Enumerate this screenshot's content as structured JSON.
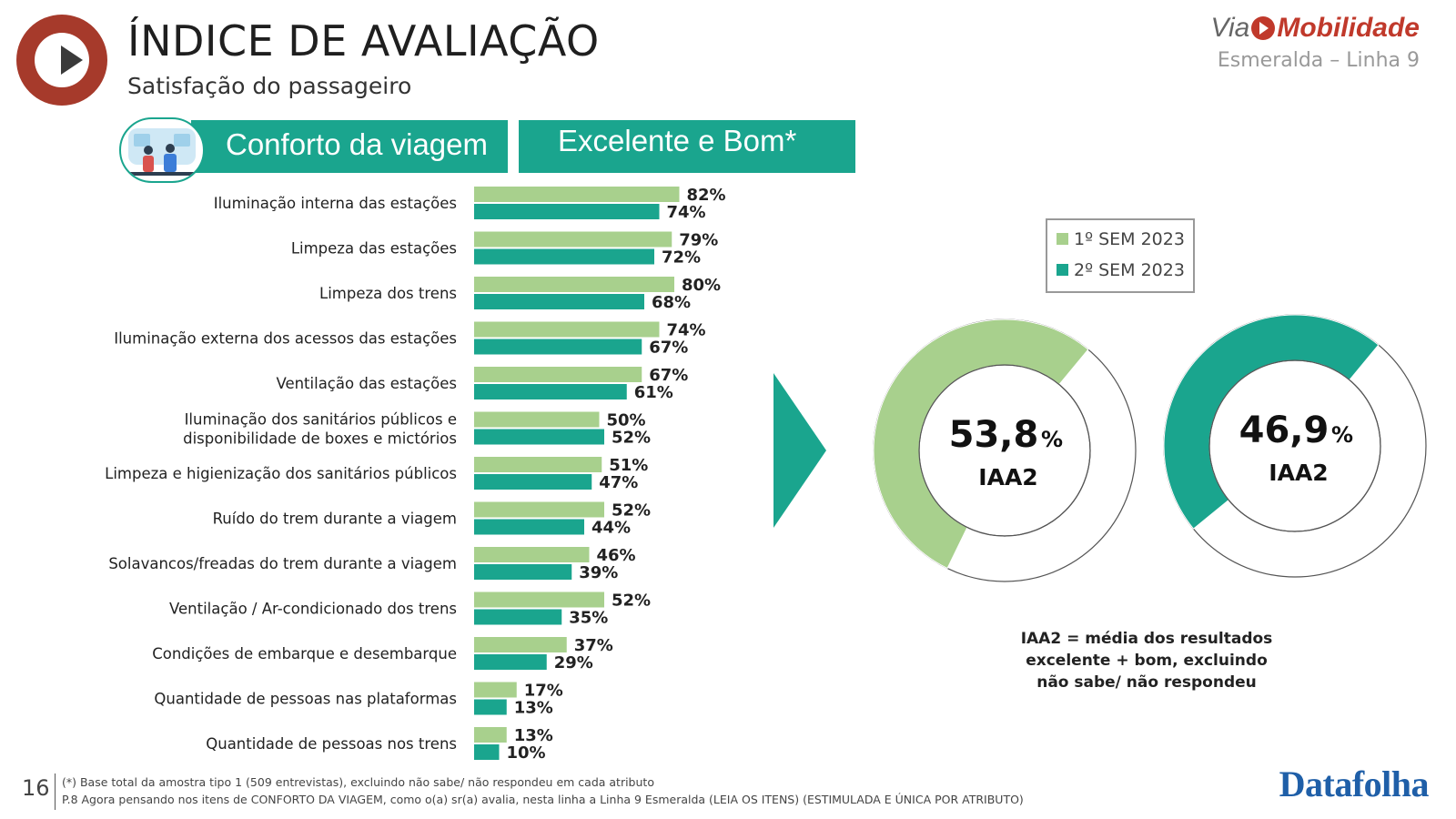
{
  "header": {
    "title": "ÍNDICE DE AVALIAÇÃO",
    "subtitle": "Satisfação do passageiro"
  },
  "brand": {
    "via": "Via",
    "name": "Mobilidade",
    "line": "Esmeralda – Linha 9",
    "accent_color": "#c0392b"
  },
  "section": {
    "banner_label": "Conforto da viagem",
    "metric_label": "Excelente e Bom*",
    "icon": "passengers-icon",
    "banner_color": "#1aa58e"
  },
  "legend": {
    "items": [
      {
        "label": "1º SEM 2023",
        "color": "#a8d08d"
      },
      {
        "label": "2º SEM 2023",
        "color": "#1aa58e"
      }
    ]
  },
  "chart_data": [
    {
      "type": "bar",
      "orientation": "horizontal",
      "categories": [
        "Iluminação interna das estações",
        "Limpeza das estações",
        "Limpeza dos trens",
        "Iluminação externa dos acessos das estações",
        "Ventilação das estações",
        "Iluminação dos sanitários públicos e disponibilidade de boxes e mictórios",
        "Limpeza e higienização dos sanitários públicos",
        "Ruído do trem durante a viagem",
        "Solavancos/freadas do trem durante a viagem",
        "Ventilação / Ar-condicionado dos trens",
        "Condições de embarque e desembarque",
        "Quantidade de pessoas nas plataformas",
        "Quantidade de pessoas nos trens"
      ],
      "series": [
        {
          "name": "1º SEM 2023",
          "values": [
            82,
            79,
            80,
            74,
            67,
            50,
            51,
            52,
            46,
            52,
            37,
            17,
            13
          ]
        },
        {
          "name": "2º SEM 2023",
          "values": [
            74,
            72,
            68,
            67,
            61,
            52,
            47,
            44,
            39,
            35,
            29,
            13,
            10
          ]
        }
      ],
      "value_suffix": "%",
      "xlim": [
        0,
        100
      ]
    },
    {
      "type": "pie",
      "style": "donut",
      "series": [
        {
          "name": "1º SEM 2023",
          "value": 53.8,
          "display": "53,8",
          "suffix": "%",
          "caption": "IAA2"
        },
        {
          "name": "2º SEM 2023",
          "value": 46.9,
          "display": "46,9",
          "suffix": "%",
          "caption": "IAA2"
        }
      ]
    }
  ],
  "note": {
    "iaa_definition": "IAA2 = média dos resultados excelente + bom, excluindo não sabe/ não respondeu"
  },
  "footer": {
    "page_number": "16",
    "footnote_1": "(*) Base total da amostra tipo 1 (509 entrevistas), excluindo não sabe/ não respondeu em cada atributo",
    "footnote_2": "P.8 Agora pensando nos itens de CONFORTO DA VIAGEM, como o(a) sr(a) avalia, nesta linha a Linha 9 Esmeralda (LEIA OS ITENS) (ESTIMULADA E ÚNICA POR ATRIBUTO)",
    "source": "Datafolha"
  }
}
